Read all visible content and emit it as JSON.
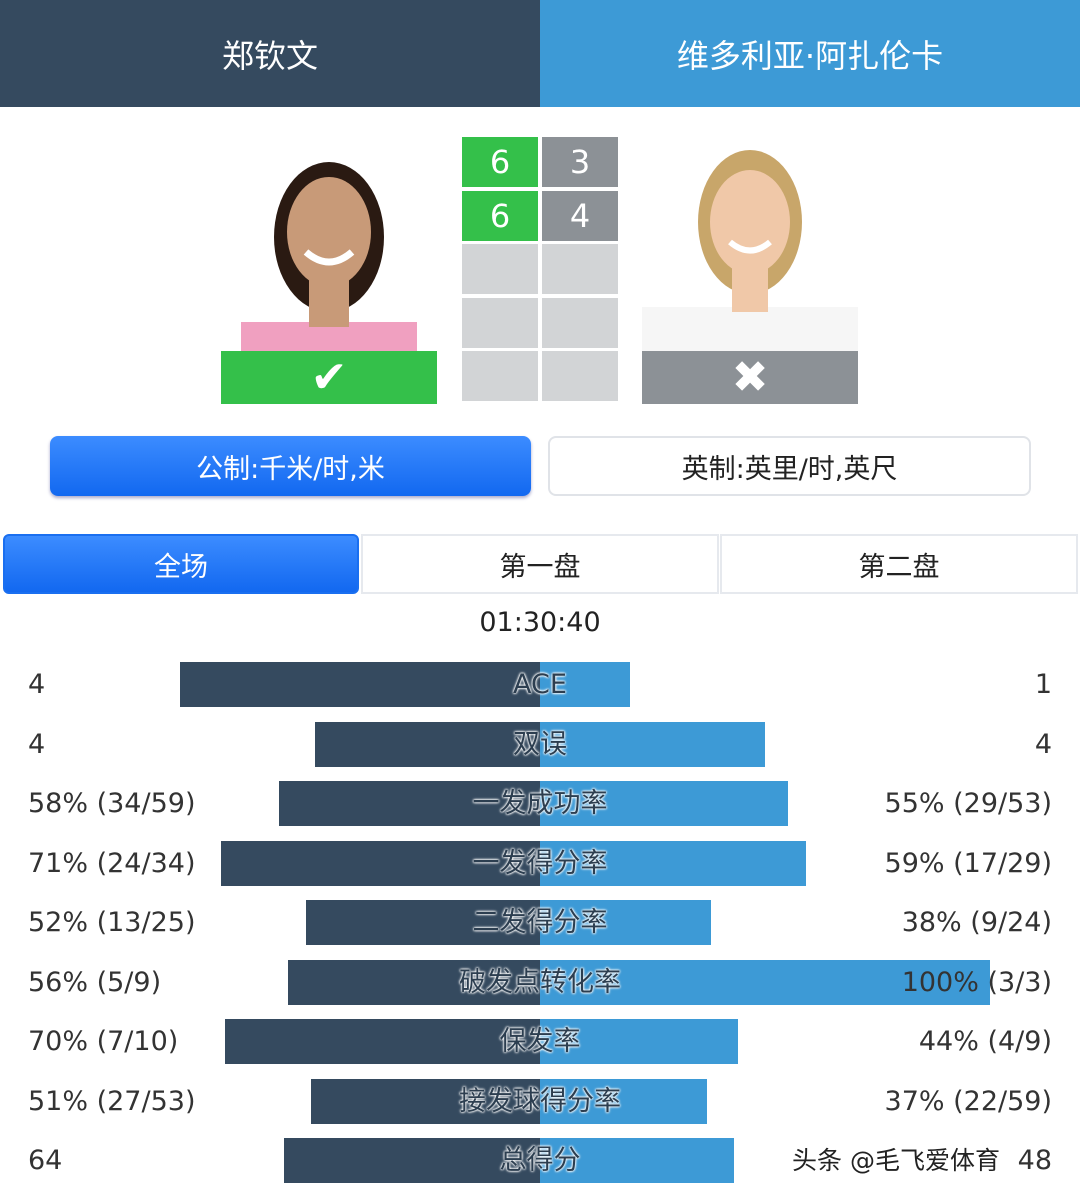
{
  "header": {
    "player1": "郑钦文",
    "player2": "维多利亚·阿扎伦卡"
  },
  "colors": {
    "player1": "#354a5f",
    "player2": "#3d9ad6",
    "win": "#34c04a",
    "lose": "#8c9196"
  },
  "result": {
    "player1_icon": "check-icon",
    "player2_icon": "x-icon",
    "player1_mark": "✔",
    "player2_mark": "✖"
  },
  "score": {
    "sets": [
      {
        "p1": "6",
        "p2": "3"
      },
      {
        "p1": "6",
        "p2": "4"
      },
      {
        "p1": "",
        "p2": ""
      },
      {
        "p1": "",
        "p2": ""
      },
      {
        "p1": "",
        "p2": ""
      }
    ]
  },
  "units": {
    "metric": "公制:千米/时,米",
    "imperial": "英制:英里/时,英尺",
    "selected": "metric"
  },
  "tabs": [
    {
      "label": "全场",
      "active": true
    },
    {
      "label": "第一盘",
      "active": false
    },
    {
      "label": "第二盘",
      "active": false
    }
  ],
  "duration": "01:30:40",
  "stats": [
    {
      "label": "ACE",
      "left": "4",
      "right": "1",
      "left_pct": 80,
      "right_pct": 20
    },
    {
      "label": "双误",
      "left": "4",
      "right": "4",
      "left_pct": 50,
      "right_pct": 50
    },
    {
      "label": "一发成功率",
      "left": "58% (34/59)",
      "right": "55% (29/53)",
      "left_pct": 58,
      "right_pct": 55
    },
    {
      "label": "一发得分率",
      "left": "71% (24/34)",
      "right": "59% (17/29)",
      "left_pct": 71,
      "right_pct": 59
    },
    {
      "label": "二发得分率",
      "left": "52% (13/25)",
      "right": "38% (9/24)",
      "left_pct": 52,
      "right_pct": 38
    },
    {
      "label": "破发点转化率",
      "left": "56% (5/9)",
      "right": "100% (3/3)",
      "left_pct": 56,
      "right_pct": 100
    },
    {
      "label": "保发率",
      "left": "70% (7/10)",
      "right": "44% (4/9)",
      "left_pct": 70,
      "right_pct": 44
    },
    {
      "label": "接发球得分率",
      "left": "51% (27/53)",
      "right": "37% (22/59)",
      "left_pct": 51,
      "right_pct": 37
    },
    {
      "label": "总得分",
      "left": "64",
      "right": "48",
      "left_pct": 57,
      "right_pct": 43
    }
  ],
  "watermark": "头条 @毛飞爱体育"
}
